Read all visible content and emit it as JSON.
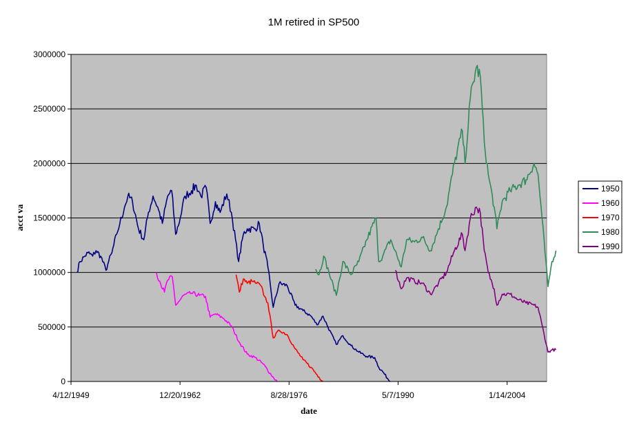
{
  "chart_data": {
    "type": "line",
    "title": "1M retired in SP500",
    "xlabel": "date",
    "ylabel": "acct va",
    "x_axis_kind": "date",
    "xlim": [
      "1949-04-12",
      "2008-12-31"
    ],
    "ylim": [
      0,
      3000000
    ],
    "x_ticks": [
      "4/12/1949",
      "12/20/1962",
      "8/28/1976",
      "5/7/1990",
      "1/14/2004"
    ],
    "y_ticks": [
      "0",
      "500000",
      "1000000",
      "1500000",
      "2000000",
      "2500000",
      "3000000"
    ],
    "grid": "horizontal",
    "legend": "right",
    "series": [
      {
        "name": "1950",
        "color": "#000080",
        "points": [
          [
            "1950-01-01",
            1000000
          ],
          [
            "1950-06-01",
            1100000
          ],
          [
            "1951-01-01",
            1150000
          ],
          [
            "1951-06-01",
            1180000
          ],
          [
            "1952-01-01",
            1150000
          ],
          [
            "1952-06-01",
            1200000
          ],
          [
            "1953-01-01",
            1150000
          ],
          [
            "1953-09-01",
            1020000
          ],
          [
            "1954-01-01",
            1100000
          ],
          [
            "1954-06-01",
            1180000
          ],
          [
            "1955-01-01",
            1350000
          ],
          [
            "1955-06-01",
            1450000
          ],
          [
            "1956-01-01",
            1600000
          ],
          [
            "1956-06-01",
            1700000
          ],
          [
            "1957-01-01",
            1650000
          ],
          [
            "1957-10-01",
            1400000
          ],
          [
            "1958-06-01",
            1300000
          ],
          [
            "1959-01-01",
            1550000
          ],
          [
            "1959-08-01",
            1700000
          ],
          [
            "1960-03-01",
            1600000
          ],
          [
            "1960-10-01",
            1450000
          ],
          [
            "1961-06-01",
            1700000
          ],
          [
            "1961-12-01",
            1750000
          ],
          [
            "1962-06-01",
            1350000
          ],
          [
            "1963-01-01",
            1500000
          ],
          [
            "1963-08-01",
            1700000
          ],
          [
            "1964-06-01",
            1750000
          ],
          [
            "1965-01-01",
            1800000
          ],
          [
            "1965-08-01",
            1700000
          ],
          [
            "1966-04-01",
            1780000
          ],
          [
            "1966-10-01",
            1450000
          ],
          [
            "1967-06-01",
            1650000
          ],
          [
            "1968-01-01",
            1550000
          ],
          [
            "1968-11-01",
            1720000
          ],
          [
            "1969-06-01",
            1550000
          ],
          [
            "1970-05-01",
            1100000
          ],
          [
            "1970-12-01",
            1350000
          ],
          [
            "1971-06-01",
            1400000
          ],
          [
            "1972-06-01",
            1400000
          ],
          [
            "1972-12-01",
            1450000
          ],
          [
            "1973-06-01",
            1250000
          ],
          [
            "1974-01-01",
            1050000
          ],
          [
            "1974-09-01",
            680000
          ],
          [
            "1975-06-01",
            900000
          ],
          [
            "1976-06-01",
            880000
          ],
          [
            "1977-06-01",
            700000
          ],
          [
            "1978-06-01",
            650000
          ],
          [
            "1979-06-01",
            600000
          ],
          [
            "1980-03-01",
            520000
          ],
          [
            "1980-12-01",
            600000
          ],
          [
            "1981-06-01",
            520000
          ],
          [
            "1982-08-01",
            340000
          ],
          [
            "1983-06-01",
            420000
          ],
          [
            "1984-06-01",
            330000
          ],
          [
            "1985-06-01",
            270000
          ],
          [
            "1986-06-01",
            230000
          ],
          [
            "1987-06-01",
            220000
          ],
          [
            "1987-12-01",
            130000
          ],
          [
            "1988-06-01",
            90000
          ],
          [
            "1989-01-01",
            30000
          ],
          [
            "1989-05-01",
            0
          ]
        ]
      },
      {
        "name": "1960",
        "color": "#ff00ff",
        "points": [
          [
            "1960-01-01",
            1000000
          ],
          [
            "1960-06-01",
            920000
          ],
          [
            "1961-01-01",
            820000
          ],
          [
            "1961-06-01",
            930000
          ],
          [
            "1962-01-01",
            960000
          ],
          [
            "1962-06-01",
            700000
          ],
          [
            "1963-01-01",
            750000
          ],
          [
            "1963-06-01",
            790000
          ],
          [
            "1964-06-01",
            810000
          ],
          [
            "1965-06-01",
            790000
          ],
          [
            "1966-03-01",
            780000
          ],
          [
            "1966-10-01",
            590000
          ],
          [
            "1967-06-01",
            620000
          ],
          [
            "1968-06-01",
            580000
          ],
          [
            "1969-06-01",
            510000
          ],
          [
            "1970-06-01",
            360000
          ],
          [
            "1971-06-01",
            250000
          ],
          [
            "1972-06-01",
            220000
          ],
          [
            "1973-06-01",
            160000
          ],
          [
            "1974-06-01",
            60000
          ],
          [
            "1975-03-01",
            0
          ]
        ]
      },
      {
        "name": "1970",
        "color": "#ff0000",
        "points": [
          [
            "1970-01-01",
            980000
          ],
          [
            "1970-06-01",
            820000
          ],
          [
            "1970-12-01",
            940000
          ],
          [
            "1971-06-01",
            900000
          ],
          [
            "1972-01-01",
            920000
          ],
          [
            "1972-08-01",
            900000
          ],
          [
            "1973-02-01",
            880000
          ],
          [
            "1973-08-01",
            780000
          ],
          [
            "1974-01-01",
            720000
          ],
          [
            "1974-09-01",
            400000
          ],
          [
            "1975-06-01",
            470000
          ],
          [
            "1976-06-01",
            430000
          ],
          [
            "1977-06-01",
            300000
          ],
          [
            "1978-06-01",
            200000
          ],
          [
            "1979-06-01",
            130000
          ],
          [
            "1980-06-01",
            40000
          ],
          [
            "1980-12-01",
            0
          ]
        ]
      },
      {
        "name": "1980",
        "color": "#2e8b57",
        "points": [
          [
            "1980-01-01",
            1030000
          ],
          [
            "1980-06-01",
            980000
          ],
          [
            "1981-01-01",
            1150000
          ],
          [
            "1981-09-01",
            1000000
          ],
          [
            "1982-08-01",
            790000
          ],
          [
            "1983-06-01",
            1100000
          ],
          [
            "1984-06-01",
            980000
          ],
          [
            "1985-06-01",
            1100000
          ],
          [
            "1986-06-01",
            1300000
          ],
          [
            "1987-08-01",
            1500000
          ],
          [
            "1987-12-01",
            1100000
          ],
          [
            "1988-06-01",
            1150000
          ],
          [
            "1989-06-01",
            1300000
          ],
          [
            "1990-10-01",
            1050000
          ],
          [
            "1991-06-01",
            1300000
          ],
          [
            "1992-06-01",
            1280000
          ],
          [
            "1993-06-01",
            1320000
          ],
          [
            "1994-06-01",
            1200000
          ],
          [
            "1995-06-01",
            1400000
          ],
          [
            "1996-06-01",
            1600000
          ],
          [
            "1997-06-01",
            2000000
          ],
          [
            "1998-06-01",
            2300000
          ],
          [
            "1998-10-01",
            2000000
          ],
          [
            "1999-06-01",
            2600000
          ],
          [
            "2000-03-01",
            2880000
          ],
          [
            "2000-09-01",
            2800000
          ],
          [
            "2001-03-01",
            2200000
          ],
          [
            "2001-09-01",
            1900000
          ],
          [
            "2002-06-01",
            1600000
          ],
          [
            "2002-10-01",
            1400000
          ],
          [
            "2003-06-01",
            1650000
          ],
          [
            "2004-06-01",
            1750000
          ],
          [
            "2005-06-01",
            1800000
          ],
          [
            "2006-06-01",
            1850000
          ],
          [
            "2007-06-01",
            2000000
          ],
          [
            "2007-12-01",
            1900000
          ],
          [
            "2008-06-01",
            1500000
          ],
          [
            "2009-03-01",
            870000
          ],
          [
            "2009-09-01",
            1100000
          ],
          [
            "2010-03-01",
            1200000
          ]
        ]
      },
      {
        "name": "1990",
        "color": "#800080",
        "points": [
          [
            "1990-01-01",
            1020000
          ],
          [
            "1990-10-01",
            850000
          ],
          [
            "1991-06-01",
            950000
          ],
          [
            "1992-06-01",
            920000
          ],
          [
            "1993-06-01",
            900000
          ],
          [
            "1994-06-01",
            800000
          ],
          [
            "1995-06-01",
            900000
          ],
          [
            "1996-06-01",
            1000000
          ],
          [
            "1997-06-01",
            1200000
          ],
          [
            "1998-06-01",
            1350000
          ],
          [
            "1998-10-01",
            1200000
          ],
          [
            "1999-06-01",
            1500000
          ],
          [
            "2000-03-01",
            1600000
          ],
          [
            "2000-09-01",
            1550000
          ],
          [
            "2001-03-01",
            1200000
          ],
          [
            "2001-09-01",
            1000000
          ],
          [
            "2002-06-01",
            850000
          ],
          [
            "2002-10-01",
            700000
          ],
          [
            "2003-06-01",
            800000
          ],
          [
            "2004-06-01",
            800000
          ],
          [
            "2005-06-01",
            750000
          ],
          [
            "2006-06-01",
            720000
          ],
          [
            "2007-06-01",
            700000
          ],
          [
            "2007-12-01",
            680000
          ],
          [
            "2008-06-01",
            520000
          ],
          [
            "2009-03-01",
            270000
          ],
          [
            "2009-09-01",
            290000
          ],
          [
            "2010-03-01",
            290000
          ]
        ]
      }
    ]
  }
}
